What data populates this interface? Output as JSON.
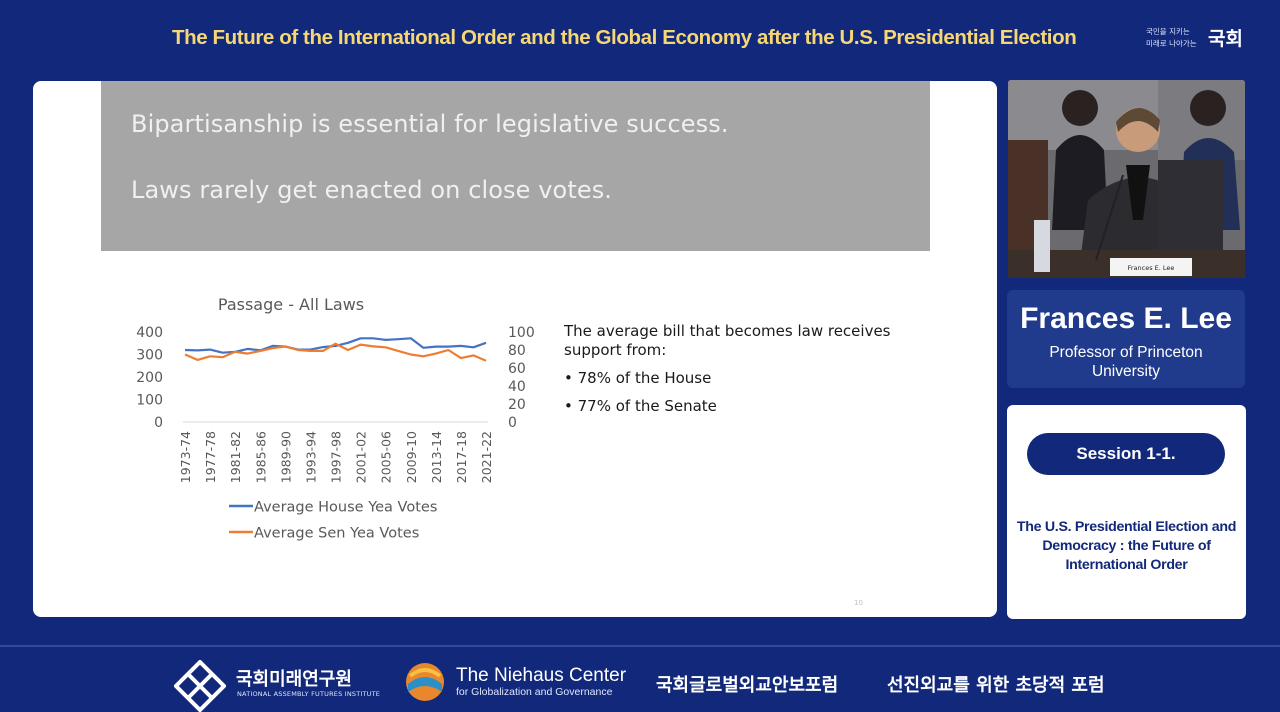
{
  "header": {
    "event_title": "The Future of the International Order and the Global Economy after the U.S. Presidential Election",
    "logo_small_line1": "국민을 지키는",
    "logo_small_line2": "미래로 나아가는",
    "logo_big": "국회"
  },
  "slide": {
    "headline_1": "Bipartisanship is essential for legislative success.",
    "headline_2": "Laws rarely get enacted on close votes.",
    "bullets_intro": "The average bill that becomes law receives support from:",
    "bullets": [
      "78% of the House",
      "77% of the Senate"
    ],
    "page_number": "10"
  },
  "chart_data": {
    "type": "line",
    "title": "Passage - All Laws",
    "x": [
      "1973-74",
      "1975-76",
      "1977-78",
      "1979-80",
      "1981-82",
      "1983-84",
      "1985-86",
      "1987-88",
      "1989-90",
      "1991-92",
      "1993-94",
      "1995-96",
      "1997-98",
      "1999-00",
      "2001-02",
      "2003-04",
      "2005-06",
      "2007-08",
      "2009-10",
      "2011-12",
      "2013-14",
      "2015-16",
      "2017-18",
      "2019-20",
      "2021-22"
    ],
    "x_tick_labels": [
      "1973-74",
      "1977-78",
      "1981-82",
      "1985-86",
      "1989-90",
      "1993-94",
      "1997-98",
      "2001-02",
      "2005-06",
      "2009-10",
      "2013-14",
      "2017-18",
      "2021-22"
    ],
    "y_left_ticks": [
      0,
      100,
      200,
      300,
      400
    ],
    "y_right_ticks": [
      0,
      20,
      40,
      60,
      80,
      100
    ],
    "y_left_lim": [
      0,
      400
    ],
    "y_right_lim": [
      0,
      100
    ],
    "series": [
      {
        "name": "Average House Yea Votes",
        "axis": "left",
        "color": "#4472c4",
        "values": [
          320,
          318,
          322,
          308,
          312,
          325,
          318,
          338,
          335,
          322,
          322,
          333,
          338,
          352,
          372,
          372,
          365,
          368,
          372,
          330,
          335,
          335,
          338,
          332,
          352
        ]
      },
      {
        "name": "Average Sen Yea Votes",
        "axis": "right",
        "color": "#ed7d31",
        "values": [
          75,
          69,
          73,
          72,
          78,
          76,
          79,
          82,
          84,
          80,
          79,
          79,
          87,
          80,
          86,
          84,
          83,
          79,
          75,
          73,
          76,
          80,
          71,
          74,
          68
        ]
      }
    ],
    "legend_position": "bottom",
    "grid": false
  },
  "speaker": {
    "name": "Frances E. Lee",
    "title_line1": "Professor of Princeton",
    "title_line2": "University",
    "nameplate": "Frances E. Lee"
  },
  "session": {
    "label": "Session 1-1.",
    "title_line1": "The U.S. Presidential Election and",
    "title_line2": "Democracy : the Future of",
    "title_line3": "International Order"
  },
  "footer": {
    "org1": "국회미래연구원",
    "org1_sub": "NATIONAL ASSEMBLY FUTURES INSTITUTE",
    "org2": "The Niehaus Center",
    "org2_sub": "for Globalization and Governance",
    "org3": "국회글로벌외교안보포럼",
    "org4": "선진외교를 위한 초당적 포럼"
  },
  "colors": {
    "background": "#12287a",
    "title_gold": "#f7d774",
    "house_series": "#4472c4",
    "senate_series": "#ed7d31"
  }
}
